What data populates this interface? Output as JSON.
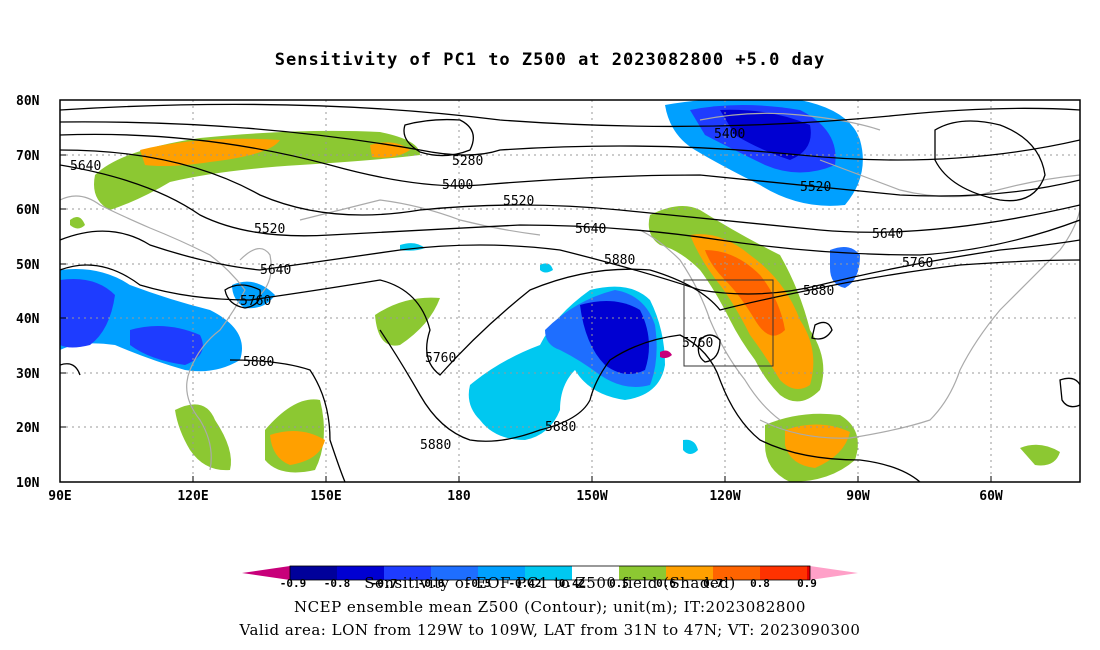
{
  "title": "Sensitivity of PC1 to Z500 at 2023082800 +5.0 day",
  "y_axis_labels": [
    "80N",
    "70N",
    "60N",
    "50N",
    "40N",
    "30N",
    "20N",
    "10N"
  ],
  "x_axis_labels": [
    "90E",
    "120E",
    "150E",
    "180",
    "150W",
    "120W",
    "90W",
    "60W"
  ],
  "contour_labels": [
    "5640",
    "5280",
    "5400",
    "5520",
    "5640",
    "5520",
    "5640",
    "5880",
    "5760",
    "5880",
    "5760",
    "5880",
    "5880",
    "5400",
    "5520",
    "5640",
    "5760",
    "5880",
    "5760"
  ],
  "colorbar": {
    "labels": [
      "-0.9",
      "-0.8",
      "-0.7",
      "-0.6",
      "-0.5",
      "-0.42",
      "0.42",
      "0.5",
      "0.6",
      "0.7",
      "0.8",
      "0.9"
    ],
    "colors": [
      "#c8007a",
      "#00009a",
      "#0000d2",
      "#1e3cff",
      "#1e6eff",
      "#00a0ff",
      "#00c8f0",
      "#ffffff",
      "#8cc832",
      "#ffa000",
      "#ff6400",
      "#ff3200",
      "#e60000",
      "#ffa0c8"
    ]
  },
  "footer": {
    "line1": "Sensitivity of EOF PC1 to Z500 field (Shaded)",
    "line2": "NCEP ensemble mean Z500 (Contour); unit(m); IT:2023082800",
    "line3": "Valid area: LON from 129W to 109W, LAT from 31N to 47N; VT: 2023090300"
  }
}
